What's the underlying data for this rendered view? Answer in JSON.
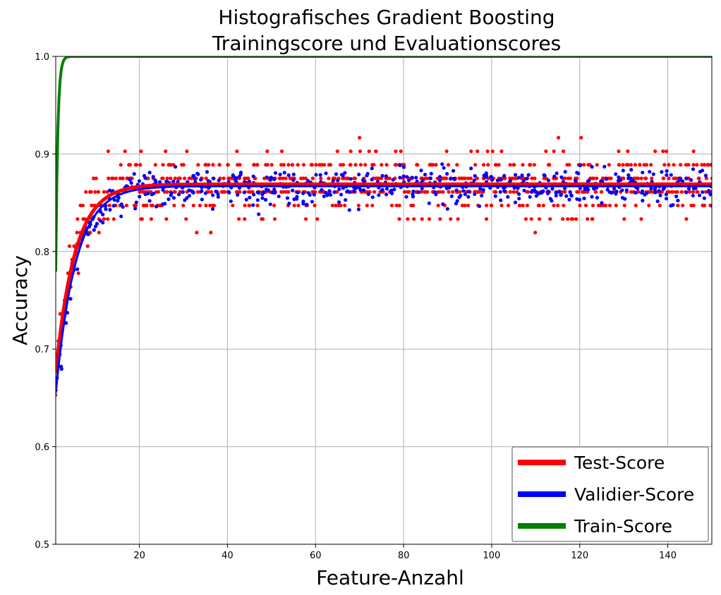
{
  "chart_data": {
    "type": "scatter",
    "title_line1": "Histografisches Gradient Boosting",
    "title_line2": "Trainingscore und Evaluationscores",
    "xlabel": "Feature-Anzahl",
    "ylabel": "Accuracy",
    "xlim": [
      1,
      150
    ],
    "ylim": [
      0.5,
      1.0
    ],
    "xticks": [
      20,
      40,
      60,
      80,
      100,
      120,
      140
    ],
    "yticks": [
      0.5,
      0.6,
      0.7,
      0.8,
      0.9,
      1.0
    ],
    "ytick_labels": [
      "0.5",
      "0.6",
      "0.7",
      "0.8",
      "0.9",
      "1.0"
    ],
    "grid": true,
    "legend_position": "bottom-right",
    "series": [
      {
        "name": "Test-Score",
        "color": "#ff0000",
        "fit": {
          "start": 0.675,
          "plateau": 0.869,
          "rate": 0.23
        },
        "points_per_x": 5,
        "spread_sd": 0.035
      },
      {
        "name": "Validier-Score",
        "color": "#0000ff",
        "fit": {
          "start": 0.655,
          "plateau": 0.867,
          "rate": 0.22
        },
        "points_per_x": 4,
        "spread_sd": 0.018
      },
      {
        "name": "Train-Score",
        "color": "#008000",
        "fit": {
          "start": 0.78,
          "plateau": 1.0,
          "rate": 2.2
        },
        "points_per_x": 1,
        "spread_sd": 0
      }
    ]
  }
}
